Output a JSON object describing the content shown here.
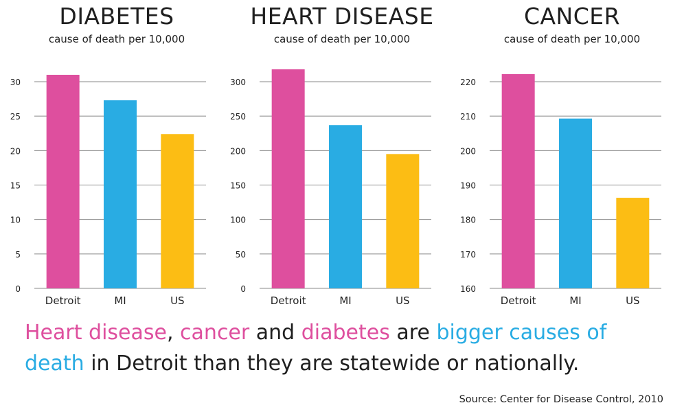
{
  "colors": {
    "pink": "#de4f9e",
    "blue": "#29ace3",
    "yellow": "#fcbd14"
  },
  "chart_data": [
    {
      "type": "bar",
      "title": "DIABETES",
      "subtitle": "cause of death per 10,000",
      "categories": [
        "Detroit",
        "MI",
        "US"
      ],
      "values": [
        31,
        27.3,
        22.4
      ],
      "ylim": [
        0,
        30
      ],
      "yticks": [
        "0",
        "5",
        "10",
        "15",
        "20",
        "25",
        "30"
      ],
      "xlabel": "",
      "ylabel": "",
      "grid": true
    },
    {
      "type": "bar",
      "title": "HEART DISEASE",
      "subtitle": "cause of death per 10,000",
      "categories": [
        "Detroit",
        "MI",
        "US"
      ],
      "values": [
        318,
        237,
        195
      ],
      "ylim": [
        0,
        300
      ],
      "yticks": [
        "0",
        "50",
        "100",
        "150",
        "200",
        "250",
        "300"
      ],
      "xlabel": "",
      "ylabel": "",
      "grid": true
    },
    {
      "type": "bar",
      "title": "CANCER",
      "subtitle": "cause of death per 10,000",
      "categories": [
        "Detroit",
        "MI",
        "US"
      ],
      "values": [
        222.2,
        209.3,
        186.3
      ],
      "ylim": [
        160,
        220
      ],
      "yticks": [
        "160",
        "170",
        "180",
        "190",
        "200",
        "210",
        "220"
      ],
      "xlabel": "",
      "ylabel": "",
      "grid": true
    }
  ],
  "headline": [
    {
      "text": "Heart disease",
      "color": "pink"
    },
    {
      "text": ", ",
      "color": "dark"
    },
    {
      "text": "cancer",
      "color": "pink"
    },
    {
      "text": " and ",
      "color": "dark"
    },
    {
      "text": "diabetes",
      "color": "pink"
    },
    {
      "text": " are ",
      "color": "dark"
    },
    {
      "text": "bigger causes of death",
      "color": "blue"
    },
    {
      "text": " in Detroit than they are statewide or nationally.",
      "color": "dark"
    }
  ],
  "source": "Source: Center for Disease Control, 2010"
}
